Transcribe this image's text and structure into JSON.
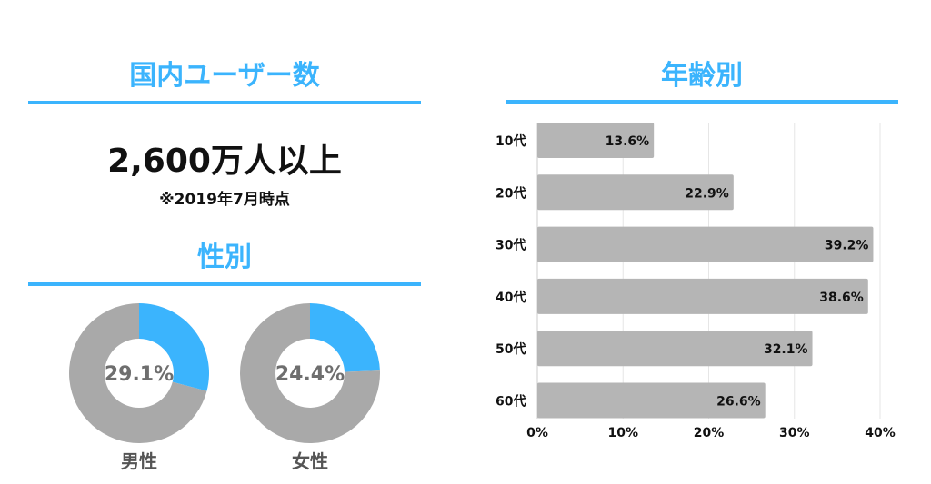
{
  "left": {
    "users_heading": "国内ユーザー数",
    "users_value": "2,600万人以上",
    "users_note": "※2019年7月時点",
    "gender_heading": "性別"
  },
  "right": {
    "age_heading": "年齢別"
  },
  "colors": {
    "accent": "#3bb4fd",
    "gray": "#a9a9a9",
    "bar": "#b5b5b5"
  },
  "chart_data": [
    {
      "type": "pie",
      "variant": "donut",
      "label": "男性",
      "center_label": "29.1%",
      "slices": [
        {
          "value": 29.1,
          "color": "#3bb4fd"
        },
        {
          "value": 70.9,
          "color": "#a9a9a9"
        }
      ]
    },
    {
      "type": "pie",
      "variant": "donut",
      "label": "女性",
      "center_label": "24.4%",
      "slices": [
        {
          "value": 24.4,
          "color": "#3bb4fd"
        },
        {
          "value": 75.6,
          "color": "#a9a9a9"
        }
      ]
    },
    {
      "type": "bar",
      "orientation": "horizontal",
      "categories": [
        "10代",
        "20代",
        "30代",
        "40代",
        "50代",
        "60代"
      ],
      "values": [
        13.6,
        22.9,
        39.2,
        38.6,
        32.1,
        26.6
      ],
      "data_labels": [
        "13.6%",
        "22.9%",
        "39.2%",
        "38.6%",
        "32.1%",
        "26.6%"
      ],
      "xlim": [
        0,
        40
      ],
      "xticks": [
        "0%",
        "10%",
        "20%",
        "30%",
        "40%"
      ],
      "grid": true
    }
  ]
}
